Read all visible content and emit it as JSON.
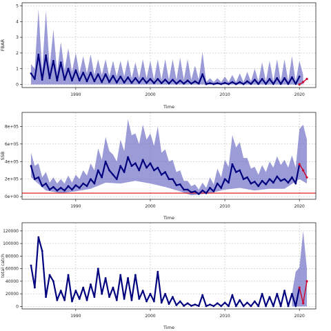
{
  "chart_data": [
    {
      "type": "line",
      "title": "",
      "xlabel": "Time",
      "ylabel": "FBAR",
      "xlim": [
        1982.8,
        2022.2
      ],
      "ylim": [
        -0.2,
        5.2
      ],
      "xticks": [
        1990,
        2000,
        2010,
        2020
      ],
      "yticks": [
        0,
        1,
        2,
        3,
        4,
        5
      ],
      "ytick_labels": [
        "0",
        "1",
        "2",
        "3",
        "4",
        "5"
      ],
      "grid": true,
      "colors": {
        "median": "#00007f",
        "band": "#7070c8",
        "projection": "#d0002a",
        "reference": "#e00000"
      },
      "series": [
        {
          "role": "median",
          "x": [
            1984.0,
            1984.5,
            1985.0,
            1985.5,
            1986.0,
            1986.5,
            1987.0,
            1987.5,
            1988.0,
            1988.5,
            1989.0,
            1989.5,
            1990.0,
            1990.5,
            1991.0,
            1991.5,
            1992.0,
            1992.5,
            1993.0,
            1993.5,
            1994.0,
            1994.5,
            1995.0,
            1995.5,
            1996.0,
            1996.5,
            1997.0,
            1997.5,
            1998.0,
            1998.5,
            1999.0,
            1999.5,
            2000.0,
            2000.5,
            2001.0,
            2001.5,
            2002.0,
            2002.5,
            2003.0,
            2003.5,
            2004.0,
            2004.5,
            2005.0,
            2005.5,
            2006.0,
            2006.5,
            2007.0,
            2007.5,
            2008.0,
            2008.5,
            2009.0,
            2009.5,
            2010.0,
            2010.5,
            2011.0,
            2011.5,
            2012.0,
            2012.5,
            2013.0,
            2013.5,
            2014.0,
            2014.5,
            2015.0,
            2015.5,
            2016.0,
            2016.5,
            2017.0,
            2017.5,
            2018.0,
            2018.5,
            2019.0,
            2019.5,
            2020.0
          ],
          "y": [
            0.7,
            0.35,
            1.9,
            0.3,
            1.85,
            0.4,
            1.5,
            0.25,
            1.4,
            0.3,
            1.0,
            0.25,
            0.9,
            0.25,
            0.75,
            0.2,
            0.75,
            0.2,
            0.65,
            0.15,
            0.65,
            0.15,
            0.55,
            0.12,
            0.5,
            0.12,
            0.45,
            0.1,
            0.4,
            0.1,
            0.4,
            0.1,
            0.35,
            0.08,
            0.35,
            0.08,
            0.3,
            0.06,
            0.3,
            0.05,
            0.25,
            0.05,
            0.25,
            0.05,
            0.2,
            0.05,
            0.65,
            0.02,
            0.08,
            0.02,
            0.08,
            0.02,
            0.1,
            0.02,
            0.15,
            0.02,
            0.15,
            0.02,
            0.2,
            0.03,
            0.3,
            0.03,
            0.35,
            0.03,
            0.35,
            0.03,
            0.4,
            0.03,
            0.4,
            0.03,
            0.45,
            0.03,
            0.5
          ]
        },
        {
          "role": "band-upper",
          "x": [
            1984.0,
            1984.5,
            1985.0,
            1985.5,
            1986.0,
            1986.5,
            1987.0,
            1987.5,
            1988.0,
            1988.5,
            1989.0,
            1989.5,
            1990.0,
            1990.5,
            1991.0,
            1991.5,
            1992.0,
            1992.5,
            1993.0,
            1993.5,
            1994.0,
            1994.5,
            1995.0,
            1995.5,
            1996.0,
            1996.5,
            1997.0,
            1997.5,
            1998.0,
            1998.5,
            1999.0,
            1999.5,
            2000.0,
            2000.5,
            2001.0,
            2001.5,
            2002.0,
            2002.5,
            2003.0,
            2003.5,
            2004.0,
            2004.5,
            2005.0,
            2005.5,
            2006.0,
            2006.5,
            2007.0,
            2007.5,
            2008.0,
            2008.5,
            2009.0,
            2009.5,
            2010.0,
            2010.5,
            2011.0,
            2011.5,
            2012.0,
            2012.5,
            2013.0,
            2013.5,
            2014.0,
            2014.5,
            2015.0,
            2015.5,
            2016.0,
            2016.5,
            2017.0,
            2017.5,
            2018.0,
            2018.5,
            2019.0,
            2019.5,
            2020.0,
            2020.5
          ],
          "y": [
            1.3,
            1.0,
            4.8,
            0.9,
            4.7,
            1.1,
            3.5,
            0.8,
            2.7,
            0.9,
            2.3,
            0.8,
            2.0,
            0.7,
            1.8,
            0.7,
            1.9,
            0.6,
            1.6,
            0.6,
            1.6,
            0.5,
            1.5,
            0.5,
            1.5,
            0.5,
            1.6,
            0.4,
            1.4,
            0.4,
            1.6,
            0.4,
            1.5,
            0.3,
            1.6,
            0.3,
            1.6,
            0.3,
            1.6,
            0.3,
            1.7,
            0.3,
            1.6,
            0.3,
            1.2,
            0.3,
            2.05,
            0.15,
            0.4,
            0.15,
            0.4,
            0.15,
            0.5,
            0.15,
            0.6,
            0.15,
            0.7,
            0.15,
            0.8,
            0.2,
            1.0,
            0.2,
            1.4,
            0.2,
            1.5,
            0.2,
            1.6,
            0.2,
            1.6,
            0.2,
            1.8,
            0.2,
            1.5,
            0.6
          ]
        },
        {
          "role": "projection",
          "x": [
            2020.0,
            2020.5,
            2021.0
          ],
          "y": [
            0.0,
            0.15,
            0.35
          ]
        }
      ]
    },
    {
      "type": "line",
      "title": "",
      "xlabel": "Time",
      "ylabel": "SSB",
      "xlim": [
        1982.8,
        2022.2
      ],
      "ylim": [
        -30000,
        960000
      ],
      "xticks": [
        1990,
        2000,
        2010,
        2020
      ],
      "yticks": [
        0,
        200000,
        400000,
        600000,
        800000
      ],
      "ytick_labels": [
        "0e+00",
        "2e+05",
        "4e+05",
        "6e+05",
        "8e+05"
      ],
      "grid": true,
      "reference_line": 40000,
      "series": [
        {
          "role": "median",
          "x": [
            1984.0,
            1984.5,
            1985.0,
            1985.5,
            1986.0,
            1986.5,
            1987.0,
            1987.5,
            1988.0,
            1988.5,
            1989.0,
            1989.5,
            1990.0,
            1990.5,
            1991.0,
            1991.5,
            1992.0,
            1992.5,
            1993.0,
            1993.5,
            1994.0,
            1994.5,
            1995.0,
            1995.5,
            1996.0,
            1996.5,
            1997.0,
            1997.5,
            1998.0,
            1998.5,
            1999.0,
            1999.5,
            2000.0,
            2000.5,
            2001.0,
            2001.5,
            2002.0,
            2002.5,
            2003.0,
            2003.5,
            2004.0,
            2004.5,
            2005.0,
            2005.5,
            2006.0,
            2006.5,
            2007.0,
            2007.5,
            2008.0,
            2008.5,
            2009.0,
            2009.5,
            2010.0,
            2010.5,
            2011.0,
            2011.5,
            2012.0,
            2012.5,
            2013.0,
            2013.5,
            2014.0,
            2014.5,
            2015.0,
            2015.5,
            2016.0,
            2016.5,
            2017.0,
            2017.5,
            2018.0,
            2018.5,
            2019.0,
            2019.5,
            2020.0
          ],
          "y": [
            350000,
            200000,
            220000,
            120000,
            150000,
            80000,
            110000,
            70000,
            100000,
            70000,
            120000,
            80000,
            130000,
            100000,
            150000,
            120000,
            200000,
            150000,
            300000,
            220000,
            400000,
            300000,
            250000,
            200000,
            350000,
            280000,
            450000,
            350000,
            380000,
            300000,
            420000,
            330000,
            380000,
            300000,
            330000,
            250000,
            280000,
            200000,
            200000,
            130000,
            140000,
            80000,
            80000,
            50000,
            60000,
            30000,
            70000,
            40000,
            100000,
            60000,
            150000,
            100000,
            200000,
            160000,
            370000,
            280000,
            300000,
            200000,
            220000,
            150000,
            170000,
            120000,
            180000,
            140000,
            200000,
            160000,
            230000,
            180000,
            200000,
            160000,
            220000,
            150000,
            370000
          ]
        },
        {
          "role": "band-upper",
          "x": [
            1984.0,
            1984.5,
            1985.0,
            1985.5,
            1986.0,
            1986.5,
            1987.0,
            1987.5,
            1988.0,
            1988.5,
            1989.0,
            1989.5,
            1990.0,
            1990.5,
            1991.0,
            1991.5,
            1992.0,
            1992.5,
            1993.0,
            1993.5,
            1994.0,
            1994.5,
            1995.0,
            1995.5,
            1996.0,
            1996.5,
            1997.0,
            1997.5,
            1998.0,
            1998.5,
            1999.0,
            1999.5,
            2000.0,
            2000.5,
            2001.0,
            2001.5,
            2002.0,
            2002.5,
            2003.0,
            2003.5,
            2004.0,
            2004.5,
            2005.0,
            2005.5,
            2006.0,
            2006.5,
            2007.0,
            2007.5,
            2008.0,
            2008.5,
            2009.0,
            2009.5,
            2010.0,
            2010.5,
            2011.0,
            2011.5,
            2012.0,
            2012.5,
            2013.0,
            2013.5,
            2014.0,
            2014.5,
            2015.0,
            2015.5,
            2016.0,
            2016.5,
            2017.0,
            2017.5,
            2018.0,
            2018.5,
            2019.0,
            2019.5,
            2020.0,
            2020.5,
            2021.0
          ],
          "y": [
            500000,
            350000,
            380000,
            220000,
            280000,
            160000,
            220000,
            150000,
            200000,
            150000,
            240000,
            160000,
            250000,
            200000,
            300000,
            240000,
            380000,
            300000,
            550000,
            420000,
            680000,
            520000,
            480000,
            400000,
            650000,
            520000,
            880000,
            700000,
            720000,
            600000,
            820000,
            650000,
            720000,
            580000,
            800000,
            500000,
            540000,
            400000,
            420000,
            280000,
            300000,
            180000,
            180000,
            120000,
            140000,
            80000,
            160000,
            100000,
            220000,
            140000,
            320000,
            220000,
            420000,
            340000,
            700000,
            560000,
            620000,
            440000,
            440000,
            320000,
            340000,
            250000,
            360000,
            280000,
            400000,
            330000,
            460000,
            360000,
            420000,
            330000,
            470000,
            330000,
            770000,
            820000,
            650000
          ]
        },
        {
          "role": "band-lower",
          "x": [
            1984.0,
            1986.0,
            1988.0,
            1990.0,
            1992.0,
            1994.0,
            1996.0,
            1998.0,
            2000.0,
            2002.0,
            2004.0,
            2005.5,
            2008.0,
            2010.0,
            2012.0,
            2014.0,
            2016.0,
            2018.0,
            2020.0,
            2021.0
          ],
          "y": [
            220000,
            70000,
            40000,
            60000,
            90000,
            160000,
            150000,
            180000,
            150000,
            110000,
            60000,
            15000,
            40000,
            80000,
            100000,
            70000,
            90000,
            90000,
            200000,
            150000
          ]
        },
        {
          "role": "projection",
          "x": [
            2020.0,
            2020.5,
            2021.0
          ],
          "y": [
            370000,
            300000,
            220000
          ]
        }
      ]
    },
    {
      "type": "line",
      "title": "",
      "xlabel": "Time",
      "ylabel": "total catch",
      "xlim": [
        1982.8,
        2022.2
      ],
      "ylim": [
        -4000,
        133000
      ],
      "xticks": [
        1990,
        2000,
        2010,
        2020
      ],
      "yticks": [
        0,
        20000,
        40000,
        60000,
        80000,
        100000,
        120000
      ],
      "ytick_labels": [
        "0",
        "20000",
        "40000",
        "60000",
        "80000",
        "100000",
        "120000"
      ],
      "grid": true,
      "series": [
        {
          "role": "observed",
          "x": [
            1984.0,
            1984.5,
            1985.0,
            1985.5,
            1986.0,
            1986.5,
            1987.0,
            1987.5,
            1988.0,
            1988.5,
            1989.0,
            1989.5,
            1990.0,
            1990.5,
            1991.0,
            1991.5,
            1992.0,
            1992.5,
            1993.0,
            1993.5,
            1994.0,
            1994.5,
            1995.0,
            1995.5,
            1996.0,
            1996.5,
            1997.0,
            1997.5,
            1998.0,
            1998.5,
            1999.0,
            1999.5,
            2000.0,
            2000.5,
            2001.0,
            2001.5,
            2002.0,
            2002.5,
            2003.0,
            2003.5,
            2004.0,
            2004.5,
            2005.0,
            2005.5,
            2006.0,
            2006.5,
            2007.0,
            2007.5,
            2008.0,
            2008.5,
            2009.0,
            2009.5,
            2010.0,
            2010.5,
            2011.0,
            2011.5,
            2012.0,
            2012.5,
            2013.0,
            2013.5,
            2014.0,
            2014.5,
            2015.0,
            2015.5,
            2016.0,
            2016.5,
            2017.0,
            2017.5,
            2018.0,
            2018.5,
            2019.0,
            2019.5,
            2020.0
          ],
          "y": [
            65000,
            30000,
            110000,
            88000,
            15000,
            50000,
            40000,
            10000,
            25000,
            10000,
            50000,
            8000,
            25000,
            12000,
            30000,
            10000,
            35000,
            15000,
            60000,
            20000,
            45000,
            15000,
            30000,
            10000,
            50000,
            12000,
            45000,
            10000,
            50000,
            12000,
            25000,
            8000,
            20000,
            8000,
            55000,
            6000,
            20000,
            4000,
            15000,
            2000,
            8000,
            1000,
            5000,
            1000,
            3000,
            800,
            18000,
            500,
            3000,
            500,
            5000,
            500,
            6000,
            500,
            18000,
            500,
            10000,
            500,
            6000,
            500,
            8000,
            500,
            20000,
            500,
            15000,
            500,
            20000,
            500,
            25000,
            500,
            20000,
            500,
            30000
          ]
        },
        {
          "role": "band-upper",
          "x": [
            2019.0,
            2019.5,
            2020.0,
            2020.5,
            2021.0
          ],
          "y": [
            20000,
            55000,
            62000,
            120000,
            60000
          ]
        },
        {
          "role": "projection",
          "x": [
            2020.0,
            2020.5,
            2021.0
          ],
          "y": [
            30000,
            5000,
            40000
          ]
        }
      ]
    }
  ]
}
